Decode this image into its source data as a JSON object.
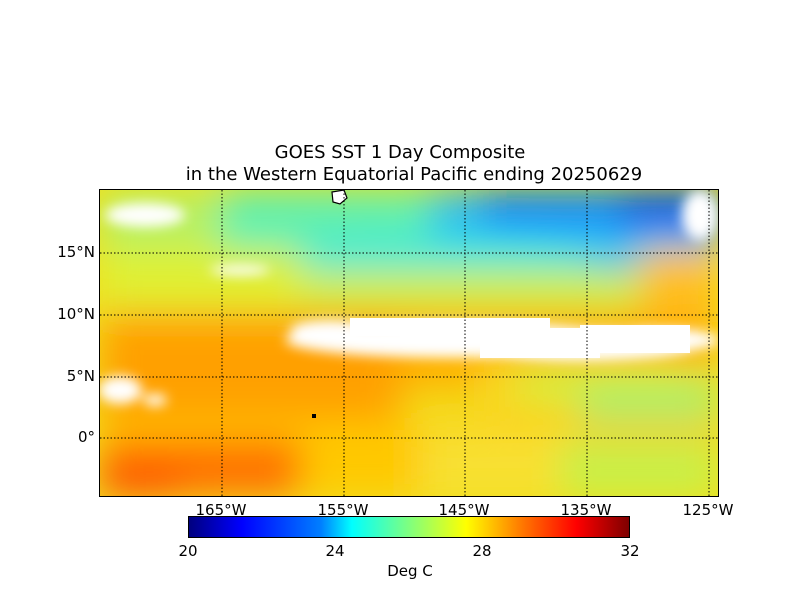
{
  "map": {
    "title_line1": "GOES SST 1 Day Composite",
    "title_line2": "in the Western Equatorial Pacific ending 20250629",
    "lat_labels": [
      "15°N",
      "10°N",
      "5°N",
      "0°"
    ],
    "lon_labels": [
      "165°W",
      "155°W",
      "145°W",
      "135°W",
      "125°W"
    ],
    "colors": {
      "cold": "#0000b0",
      "cool": "#00a0ff",
      "mid": "#40f0d0",
      "warm": "#d8f040",
      "hot": "#ffa000",
      "very_hot": "#ff4000",
      "land": "#ffffff",
      "cloud": "#ffffff"
    }
  },
  "colorbar": {
    "ticks": [
      "20",
      "24",
      "28",
      "32"
    ],
    "label": "Deg C",
    "range_degC": [
      20,
      32
    ]
  }
}
